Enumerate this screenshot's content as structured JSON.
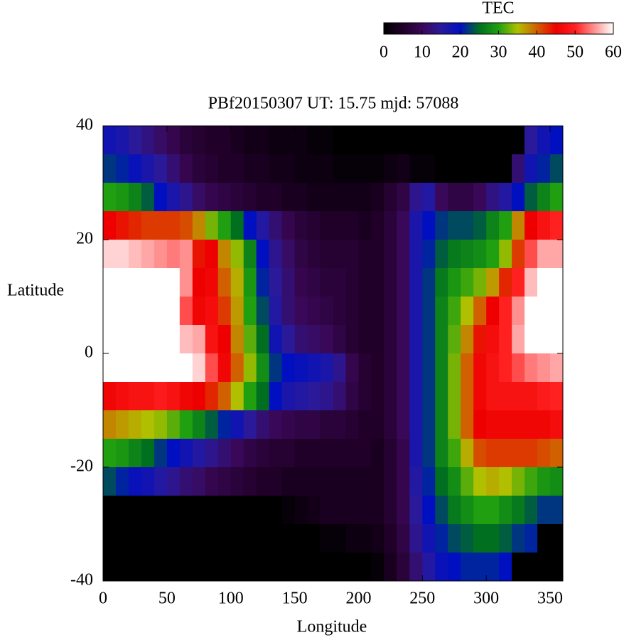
{
  "chart_data": {
    "type": "heatmap",
    "title": "PBf20150307  UT: 15.75  mjd: 57088",
    "x_label": "Longitude",
    "y_label": "Latitude",
    "colorbar_label": "TEC",
    "x": [
      5,
      15,
      25,
      35,
      45,
      55,
      65,
      75,
      85,
      95,
      105,
      115,
      125,
      135,
      145,
      155,
      165,
      175,
      185,
      195,
      205,
      215,
      225,
      235,
      245,
      255,
      265,
      275,
      285,
      295,
      305,
      315,
      325,
      335,
      345,
      355
    ],
    "y": [
      37.5,
      32.5,
      27.5,
      22.5,
      17.5,
      12.5,
      7.5,
      2.5,
      -2.5,
      -7.5,
      -12.5,
      -17.5,
      -22.5,
      -27.5,
      -32.5,
      -37.5
    ],
    "values": [
      [
        18,
        17,
        15,
        13,
        11,
        9,
        7,
        6,
        5,
        5,
        4,
        3,
        3,
        2,
        2,
        2,
        1,
        1,
        0,
        0,
        0,
        0,
        0,
        0,
        0,
        0,
        0,
        0,
        0,
        0,
        0,
        0,
        0,
        15,
        18,
        20
      ],
      [
        22,
        21,
        19,
        17,
        15,
        12,
        9,
        7,
        6,
        5,
        5,
        4,
        4,
        3,
        3,
        2,
        2,
        2,
        1,
        1,
        1,
        1,
        2,
        3,
        1,
        1,
        0,
        0,
        0,
        0,
        0,
        0,
        12,
        18,
        21,
        23
      ],
      [
        30,
        29,
        27,
        24,
        20,
        17,
        14,
        11,
        9,
        8,
        7,
        6,
        5,
        5,
        4,
        4,
        3,
        3,
        3,
        3,
        3,
        4,
        6,
        8,
        14,
        16,
        10,
        8,
        8,
        10,
        13,
        16,
        20,
        24,
        27,
        30
      ],
      [
        45,
        44,
        43,
        42,
        42,
        42,
        41,
        38,
        33,
        30,
        25,
        20,
        16,
        12,
        9,
        7,
        6,
        5,
        5,
        5,
        4,
        5,
        7,
        10,
        17,
        20,
        22,
        23,
        23,
        24,
        27,
        30,
        38,
        45,
        48,
        50
      ],
      [
        58,
        58,
        57,
        56,
        55,
        54,
        55,
        44,
        45,
        38,
        34,
        27,
        20,
        14,
        11,
        8,
        7,
        6,
        6,
        6,
        5,
        5,
        7,
        10,
        17,
        21,
        24,
        26,
        27,
        28,
        30,
        34,
        42,
        52,
        56,
        56
      ],
      [
        60,
        60,
        60,
        60,
        60,
        60,
        55,
        45,
        46,
        40,
        36,
        29,
        21,
        15,
        12,
        9,
        8,
        7,
        7,
        6,
        5,
        5,
        7,
        10,
        17,
        22,
        26,
        29,
        31,
        33,
        37,
        43,
        50,
        57,
        60,
        60
      ],
      [
        60,
        60,
        60,
        60,
        60,
        60,
        52,
        46,
        47,
        42,
        37,
        30,
        23,
        16,
        12,
        10,
        9,
        8,
        7,
        6,
        5,
        5,
        7,
        10,
        17,
        22,
        27,
        31,
        35,
        40,
        45,
        50,
        55,
        60,
        60,
        60
      ],
      [
        60,
        60,
        60,
        60,
        60,
        60,
        57,
        56,
        48,
        45,
        38,
        32,
        25,
        18,
        15,
        12,
        11,
        10,
        8,
        6,
        5,
        5,
        7,
        10,
        17,
        22,
        27,
        32,
        38,
        44,
        47,
        50,
        56,
        60,
        60,
        60
      ],
      [
        60,
        60,
        60,
        60,
        60,
        60,
        60,
        58,
        52,
        46,
        40,
        34,
        28,
        22,
        20,
        19,
        18,
        17,
        14,
        9,
        6,
        5,
        7,
        10,
        17,
        22,
        27,
        33,
        40,
        46,
        48,
        50,
        52,
        54,
        55,
        56
      ],
      [
        46,
        47,
        48,
        48,
        49,
        48,
        46,
        45,
        43,
        40,
        35,
        30,
        25,
        20,
        17,
        16,
        15,
        14,
        12,
        8,
        6,
        5,
        7,
        10,
        17,
        22,
        27,
        33,
        40,
        46,
        48,
        48,
        48,
        48,
        49,
        50
      ],
      [
        38,
        37,
        36,
        35,
        34,
        32,
        30,
        27,
        24,
        21,
        18,
        15,
        12,
        10,
        9,
        8,
        8,
        7,
        7,
        6,
        5,
        5,
        7,
        10,
        17,
        22,
        27,
        33,
        40,
        45,
        46,
        46,
        46,
        46,
        46,
        47
      ],
      [
        30,
        29,
        27,
        25,
        22,
        20,
        18,
        16,
        14,
        12,
        10,
        8,
        7,
        6,
        6,
        5,
        5,
        5,
        5,
        5,
        5,
        4,
        6,
        9,
        17,
        22,
        27,
        31,
        36,
        41,
        42,
        42,
        42,
        42,
        41,
        40
      ],
      [
        23,
        21,
        19,
        18,
        16,
        14,
        12,
        11,
        9,
        8,
        7,
        6,
        5,
        5,
        4,
        4,
        4,
        4,
        4,
        4,
        4,
        4,
        6,
        9,
        16,
        21,
        25,
        28,
        32,
        35,
        36,
        35,
        33,
        31,
        29,
        28
      ],
      [
        0,
        0,
        0,
        0,
        0,
        0,
        0,
        0,
        0,
        0,
        0,
        0,
        0,
        0,
        1,
        2,
        3,
        4,
        4,
        4,
        4,
        4,
        6,
        9,
        15,
        20,
        23,
        26,
        28,
        30,
        30,
        28,
        26,
        24,
        22,
        22
      ],
      [
        0,
        0,
        0,
        0,
        0,
        0,
        0,
        0,
        0,
        0,
        0,
        0,
        0,
        0,
        0,
        0,
        0,
        1,
        1,
        2,
        2,
        3,
        5,
        8,
        14,
        18,
        21,
        23,
        24,
        25,
        25,
        24,
        22,
        21,
        0,
        0
      ],
      [
        0,
        0,
        0,
        0,
        0,
        0,
        0,
        0,
        0,
        0,
        0,
        0,
        0,
        0,
        0,
        0,
        0,
        0,
        0,
        0,
        0,
        1,
        4,
        7,
        12,
        16,
        19,
        20,
        21,
        21,
        21,
        20,
        0,
        0,
        0,
        0
      ]
    ],
    "xlim": [
      0,
      360
    ],
    "xticks": [
      0,
      50,
      100,
      150,
      200,
      250,
      300,
      350
    ],
    "ylim": [
      -40,
      40
    ],
    "yticks": [
      -40,
      -20,
      0,
      20,
      40
    ],
    "zlim": [
      0,
      60
    ],
    "zticks": [
      0,
      10,
      20,
      30,
      40,
      50,
      60
    ],
    "colormap": [
      "#000000",
      "#200028",
      "#3a0858",
      "#2a1a9a",
      "#0010c0",
      "#007020",
      "#20a010",
      "#b0c000",
      "#d06000",
      "#ee0000",
      "#ff2020",
      "#ff9090",
      "#ffffff"
    ]
  }
}
